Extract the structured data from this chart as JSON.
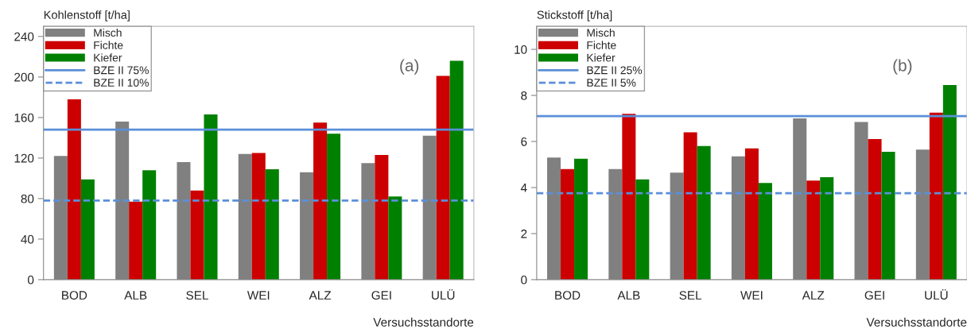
{
  "chart_data": [
    {
      "type": "bar",
      "ylabel": "Kohlenstoff [t/ha]",
      "xlabel": "Versuchsstandorte",
      "categories": [
        "BOD",
        "ALB",
        "SEL",
        "WEI",
        "ALZ",
        "GEI",
        "ULÜ"
      ],
      "series": [
        {
          "name": "Misch",
          "color": "#808080",
          "values": [
            122,
            156,
            116,
            124,
            106,
            115,
            142
          ]
        },
        {
          "name": "Fichte",
          "color": "#cc0000",
          "values": [
            178,
            77,
            88,
            125,
            155,
            123,
            201
          ]
        },
        {
          "name": "Kiefer",
          "color": "#008000",
          "values": [
            99,
            108,
            163,
            109,
            144,
            82,
            216
          ]
        }
      ],
      "ref_lines": [
        {
          "axis": "y",
          "value": 148,
          "label": "BZE II 75%",
          "color": "#5b8fd9",
          "line_style": "solid"
        },
        {
          "axis": "y",
          "value": 78,
          "label": "BZE II 10%",
          "color": "#5b8fd9",
          "line_style": "dashed"
        }
      ],
      "annotations": [
        "(a)"
      ],
      "ylim": [
        0,
        250
      ],
      "yticks": [
        0,
        40,
        80,
        120,
        160,
        200,
        240
      ],
      "grid": false,
      "legend": "top left"
    },
    {
      "type": "bar",
      "ylabel": "Stickstoff [t/ha]",
      "xlabel": "Versuchsstandorte",
      "categories": [
        "BOD",
        "ALB",
        "SEL",
        "WEI",
        "ALZ",
        "GEI",
        "ULÜ"
      ],
      "series": [
        {
          "name": "Misch",
          "color": "#808080",
          "values": [
            5.3,
            4.8,
            4.65,
            5.35,
            7.0,
            6.85,
            5.65
          ]
        },
        {
          "name": "Fichte",
          "color": "#cc0000",
          "values": [
            4.8,
            7.2,
            6.4,
            5.7,
            4.3,
            6.1,
            7.25
          ]
        },
        {
          "name": "Kiefer",
          "color": "#008000",
          "values": [
            5.25,
            4.35,
            5.8,
            4.2,
            4.45,
            5.55,
            8.45
          ]
        }
      ],
      "ref_lines": [
        {
          "axis": "y",
          "value": 7.1,
          "label": "BZE II 25%",
          "color": "#5b8fd9",
          "line_style": "solid"
        },
        {
          "axis": "y",
          "value": 3.75,
          "label": "BZE II 5%",
          "color": "#5b8fd9",
          "line_style": "dashed"
        }
      ],
      "annotations": [
        "(b)"
      ],
      "ylim": [
        0,
        11
      ],
      "yticks": [
        0,
        2,
        4,
        6,
        8,
        10
      ],
      "grid": false,
      "legend": "top left"
    }
  ]
}
